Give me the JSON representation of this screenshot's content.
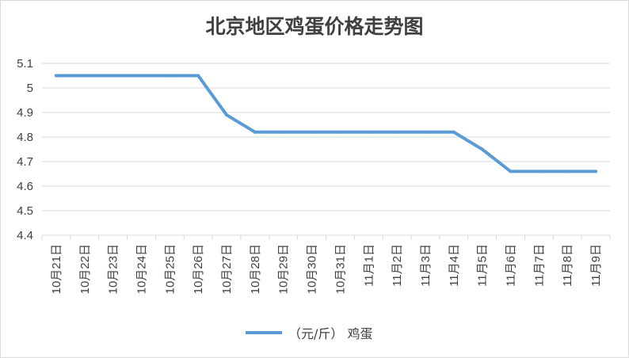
{
  "chart_data": {
    "type": "line",
    "title": "北京地区鸡蛋价格走势图",
    "categories": [
      "10月21日",
      "10月22日",
      "10月23日",
      "10月24日",
      "10月25日",
      "10月26日",
      "10月27日",
      "10月28日",
      "10月29日",
      "10月30日",
      "10月31日",
      "11月1日",
      "11月2日",
      "11月3日",
      "11月4日",
      "11月5日",
      "11月6日",
      "11月7日",
      "11月8日",
      "11月9日"
    ],
    "series": [
      {
        "name": "（元/斤） 鸡蛋",
        "color": "#5b9bd5",
        "values": [
          5.05,
          5.05,
          5.05,
          5.05,
          5.05,
          5.05,
          4.89,
          4.82,
          4.82,
          4.82,
          4.82,
          4.82,
          4.82,
          4.82,
          4.82,
          4.75,
          4.66,
          4.66,
          4.66,
          4.66
        ]
      }
    ],
    "ylim": [
      4.4,
      5.1
    ],
    "yticks": [
      "4.4",
      "4.5",
      "4.6",
      "4.7",
      "4.8",
      "4.9",
      "5",
      "5.1"
    ],
    "grid": true,
    "legend": "bottom"
  }
}
